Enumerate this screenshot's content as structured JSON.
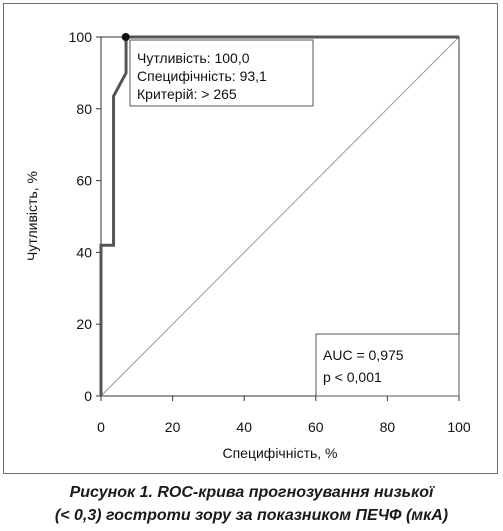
{
  "chart_data": {
    "type": "line",
    "xlabel": "Специфічність, %",
    "ylabel": "Чутливість, %",
    "xlim": [
      0,
      100
    ],
    "ylim": [
      0,
      100
    ],
    "x_ticks": [
      "0",
      "20",
      "40",
      "60",
      "80",
      "100"
    ],
    "y_ticks": [
      "0",
      "20",
      "40",
      "60",
      "80",
      "100"
    ],
    "grid": false,
    "series": [
      {
        "values_x": [
          0,
          0,
          3.5,
          3.5,
          7,
          7,
          100
        ],
        "values_y": [
          0,
          42,
          42,
          83.5,
          90,
          100,
          100
        ],
        "color": "#555555"
      }
    ],
    "reference_line": {
      "from": [
        0,
        0
      ],
      "to": [
        100,
        100
      ],
      "color": "#9a9a9a"
    },
    "optimal_point": {
      "x": 6.9,
      "y": 100
    },
    "annotation": [
      "Чутливість: 100,0",
      "Специфічність: 93,1",
      "Критерій: > 265"
    ],
    "stats": [
      "AUC = 0,975",
      "p < 0,001"
    ]
  },
  "caption": {
    "line1": "Рисунок 1. ROC-крива прогнозування низької",
    "line2": "(< 0,3) гостроти зору за показником ПЕЧФ (мкА)"
  }
}
